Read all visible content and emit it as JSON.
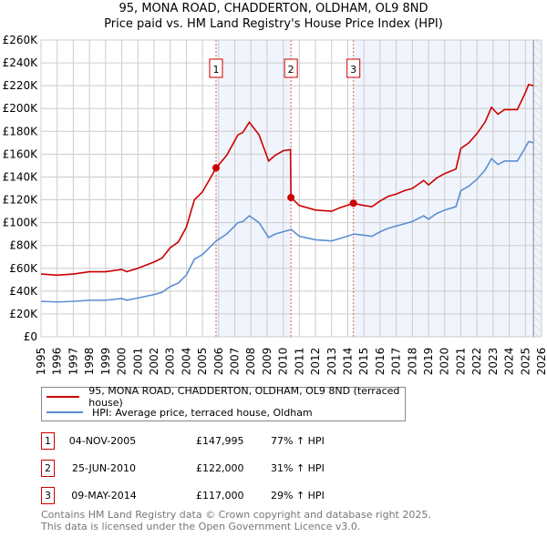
{
  "title": "95, MONA ROAD, CHADDERTON, OLDHAM, OL9 8ND",
  "subtitle": "Price paid vs. HM Land Registry's House Price Index (HPI)",
  "chart_data": {
    "type": "line",
    "xlim": [
      1995,
      2026
    ],
    "ylim": [
      0,
      260000
    ],
    "x_ticks": [
      "1995",
      "1996",
      "1997",
      "1998",
      "1999",
      "2000",
      "2001",
      "2002",
      "2003",
      "2004",
      "2005",
      "2006",
      "2007",
      "2008",
      "2009",
      "2010",
      "2011",
      "2012",
      "2013",
      "2014",
      "2015",
      "2016",
      "2017",
      "2018",
      "2019",
      "2020",
      "2021",
      "2022",
      "2023",
      "2024",
      "2025",
      "2026"
    ],
    "y_ticks": [
      "£0",
      "£20K",
      "£40K",
      "£60K",
      "£80K",
      "£100K",
      "£120K",
      "£140K",
      "£160K",
      "£180K",
      "£200K",
      "£220K",
      "£240K",
      "£260K"
    ],
    "grid": true,
    "data_end_year": 2025.5,
    "series": [
      {
        "name": "95, MONA ROAD, CHADDERTON, OLDHAM, OL9 8ND (terraced house)",
        "color": "#cc0000",
        "points": [
          [
            1995,
            55
          ],
          [
            1996,
            54
          ],
          [
            1997,
            55
          ],
          [
            1998,
            57
          ],
          [
            1999,
            57
          ],
          [
            2000,
            59
          ],
          [
            2000.3,
            57
          ],
          [
            2001,
            60
          ],
          [
            2002,
            65.5
          ],
          [
            2002.5,
            69
          ],
          [
            2003,
            78
          ],
          [
            2003.5,
            83
          ],
          [
            2004,
            96
          ],
          [
            2004.5,
            120
          ],
          [
            2005,
            127
          ],
          [
            2005.85,
            148
          ],
          [
            2006.5,
            159
          ],
          [
            2007.2,
            177
          ],
          [
            2007.5,
            179
          ],
          [
            2007.9,
            188
          ],
          [
            2008.5,
            177
          ],
          [
            2009.1,
            154
          ],
          [
            2009.5,
            159
          ],
          [
            2010,
            163
          ],
          [
            2010.45,
            164
          ],
          [
            2010.48,
            122
          ],
          [
            2011,
            115
          ],
          [
            2012,
            111
          ],
          [
            2013,
            110
          ],
          [
            2013.5,
            113
          ],
          [
            2014.35,
            117
          ],
          [
            2015,
            115
          ],
          [
            2015.5,
            114
          ],
          [
            2016,
            119
          ],
          [
            2016.5,
            123
          ],
          [
            2017,
            125
          ],
          [
            2017.5,
            128
          ],
          [
            2018,
            130
          ],
          [
            2018.7,
            137
          ],
          [
            2019,
            133
          ],
          [
            2019.5,
            139
          ],
          [
            2020,
            143
          ],
          [
            2020.7,
            147
          ],
          [
            2021,
            165
          ],
          [
            2021.5,
            170
          ],
          [
            2022,
            178
          ],
          [
            2022.5,
            188
          ],
          [
            2022.9,
            201
          ],
          [
            2023.3,
            195
          ],
          [
            2023.7,
            199
          ],
          [
            2024.5,
            199
          ],
          [
            2025,
            214
          ],
          [
            2025.2,
            221
          ],
          [
            2025.5,
            220
          ]
        ]
      },
      {
        "name": "HPI: Average price, terraced house, Oldham",
        "color": "#5b8fd0",
        "points": [
          [
            1995,
            31
          ],
          [
            1996,
            30.5
          ],
          [
            1997,
            31
          ],
          [
            1998,
            32
          ],
          [
            1999,
            32
          ],
          [
            2000,
            33.5
          ],
          [
            2000.3,
            32
          ],
          [
            2001,
            34
          ],
          [
            2002,
            37
          ],
          [
            2002.5,
            39
          ],
          [
            2003,
            44
          ],
          [
            2003.5,
            47
          ],
          [
            2004,
            54
          ],
          [
            2004.5,
            68
          ],
          [
            2005,
            72
          ],
          [
            2005.85,
            84
          ],
          [
            2006.5,
            90
          ],
          [
            2007.2,
            100
          ],
          [
            2007.5,
            101
          ],
          [
            2007.9,
            106
          ],
          [
            2008.5,
            100
          ],
          [
            2009.1,
            87
          ],
          [
            2009.5,
            90
          ],
          [
            2010,
            92
          ],
          [
            2010.5,
            94
          ],
          [
            2011,
            88
          ],
          [
            2012,
            85
          ],
          [
            2013,
            84
          ],
          [
            2013.5,
            86
          ],
          [
            2014.4,
            90
          ],
          [
            2015,
            89
          ],
          [
            2015.5,
            88
          ],
          [
            2016,
            92
          ],
          [
            2016.5,
            95
          ],
          [
            2017,
            97
          ],
          [
            2017.5,
            99
          ],
          [
            2018,
            101
          ],
          [
            2018.7,
            106
          ],
          [
            2019,
            103
          ],
          [
            2019.5,
            108
          ],
          [
            2020,
            111
          ],
          [
            2020.7,
            114
          ],
          [
            2021,
            128
          ],
          [
            2021.5,
            132
          ],
          [
            2022,
            138
          ],
          [
            2022.5,
            146
          ],
          [
            2022.9,
            156
          ],
          [
            2023.3,
            151
          ],
          [
            2023.7,
            154
          ],
          [
            2024.5,
            154
          ],
          [
            2025,
            166
          ],
          [
            2025.2,
            171
          ],
          [
            2025.5,
            170
          ]
        ]
      }
    ],
    "sales": [
      {
        "label": "1",
        "x": 2005.84,
        "value": 147995,
        "date": "04-NOV-2005",
        "price": "£147,995",
        "hpi_change": "77% ↑ HPI"
      },
      {
        "label": "2",
        "x": 2010.48,
        "value": 122000,
        "date": "25-JUN-2010",
        "price": "£122,000",
        "hpi_change": "31% ↑ HPI"
      },
      {
        "label": "3",
        "x": 2014.35,
        "value": 117000,
        "date": "09-MAY-2014",
        "price": "£117,000",
        "hpi_change": "29% ↑ HPI"
      }
    ]
  },
  "footer": {
    "line1": "Contains HM Land Registry data © Crown copyright and database right 2025.",
    "line2": "This data is licensed under the Open Government Licence v3.0."
  }
}
